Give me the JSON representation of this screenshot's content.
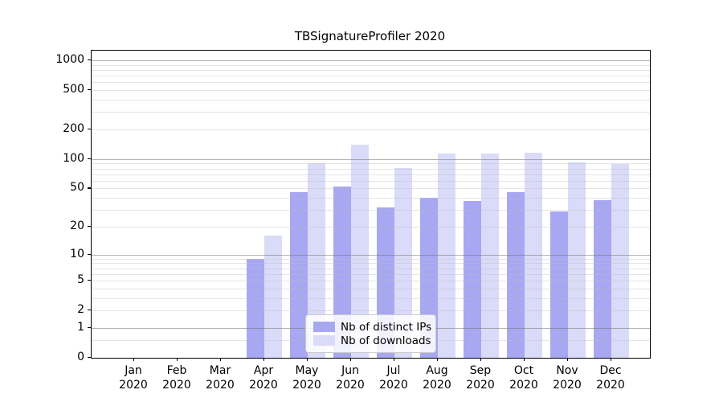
{
  "chart_data": {
    "type": "bar",
    "title": "TBSignatureProfiler 2020",
    "categories": [
      "Jan",
      "Feb",
      "Mar",
      "Apr",
      "May",
      "Jun",
      "Jul",
      "Aug",
      "Sep",
      "Oct",
      "Nov",
      "Dec"
    ],
    "category_year": "2020",
    "series": [
      {
        "name": "Nb of distinct IPs",
        "color": "#a7a7f2",
        "values": [
          0,
          0,
          0,
          9,
          46,
          52,
          32,
          40,
          37,
          46,
          29,
          38
        ]
      },
      {
        "name": "Nb of downloads",
        "color": "#dadaf9",
        "values": [
          0,
          0,
          0,
          16,
          90,
          140,
          81,
          114,
          114,
          116,
          92,
          89
        ]
      }
    ],
    "xlabel": "",
    "ylabel": "",
    "y_scale": "log10(value+1)",
    "y_axis_max": 1250,
    "y_ticks": [
      0,
      1,
      2,
      5,
      10,
      20,
      50,
      100,
      200,
      500,
      1000
    ],
    "y_major_gridlines": [
      1,
      10,
      100,
      1000
    ],
    "y_minor_gridlines": [
      0.5,
      2,
      3,
      4,
      5,
      6,
      7,
      8,
      9,
      20,
      30,
      40,
      50,
      60,
      70,
      80,
      90,
      200,
      300,
      400,
      500,
      600,
      700,
      800,
      900
    ],
    "grid": true,
    "legend_position": "inside-bottom-center"
  },
  "colors": {
    "background": "#ffffff",
    "axis": "#000000",
    "major_grid": "#b5b5b5",
    "minor_grid": "#e5e5e5",
    "legend_border": "#cccccc",
    "series_ips": "#a7a7f2",
    "series_downloads": "#dadaf9"
  }
}
